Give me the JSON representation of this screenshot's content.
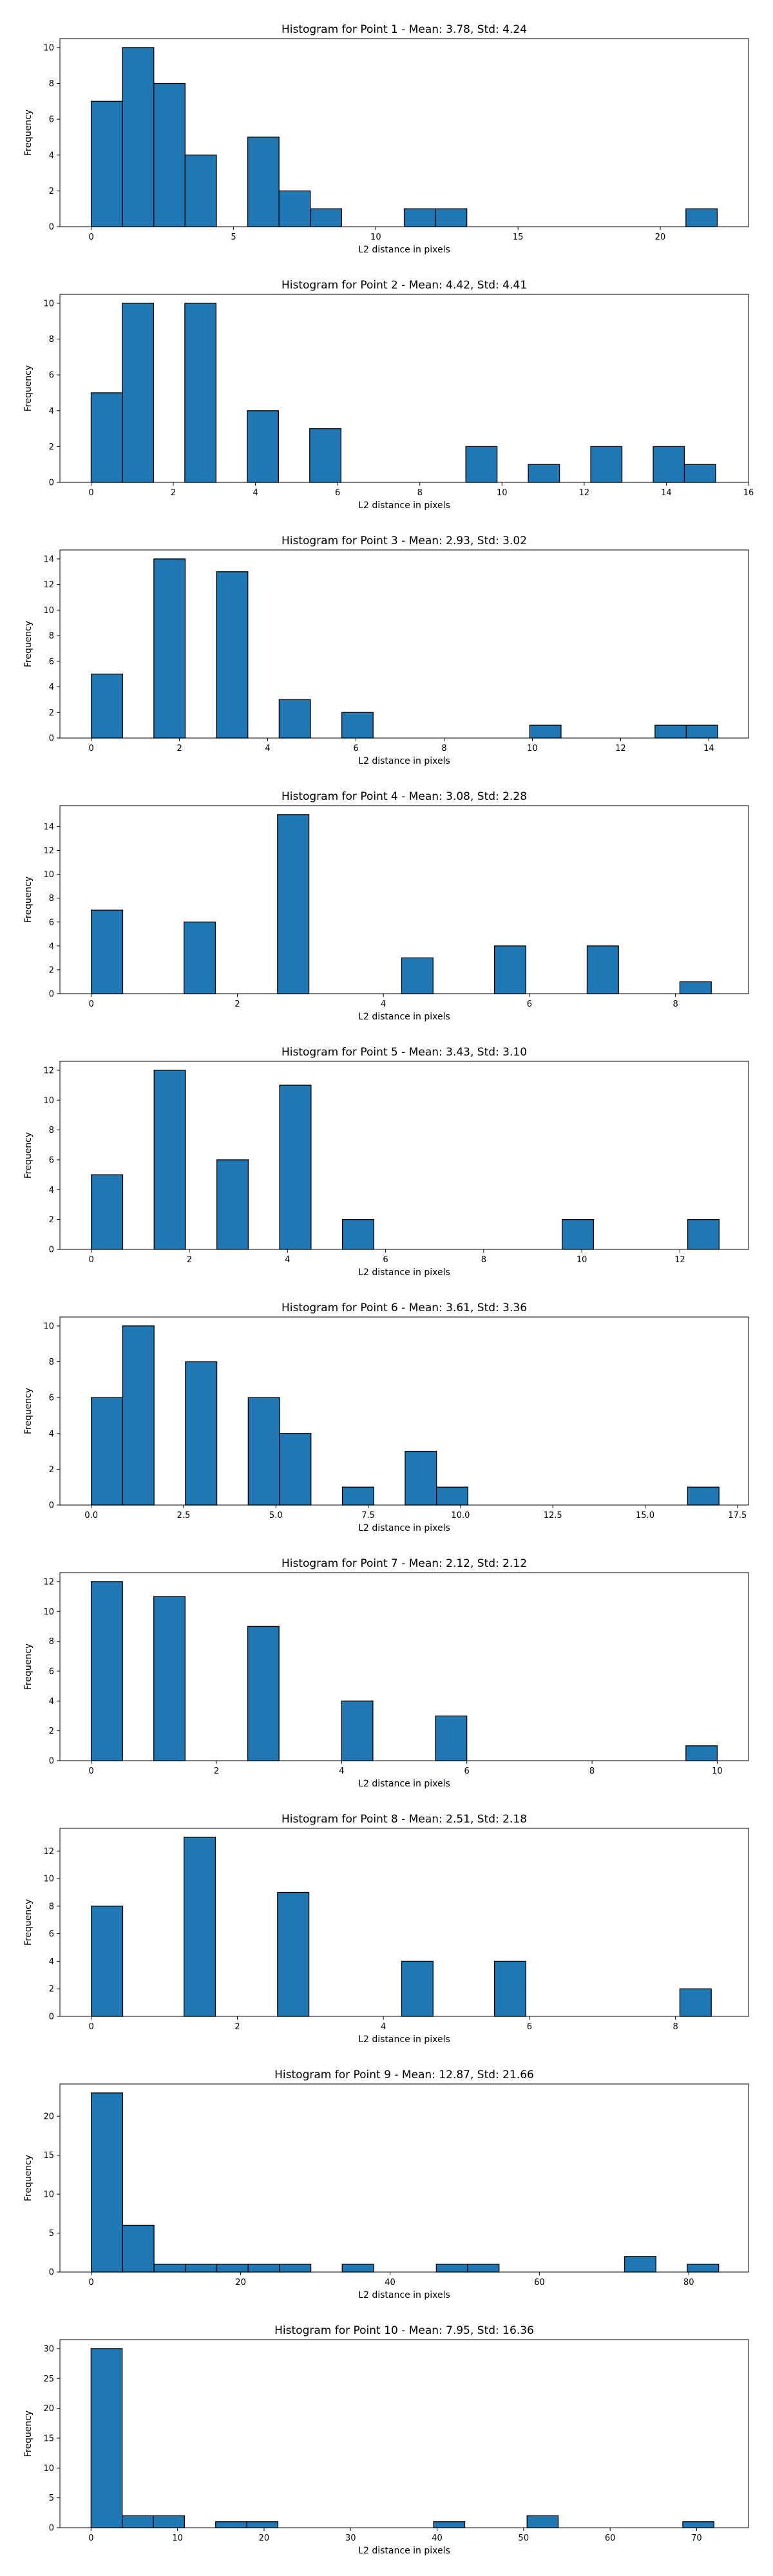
{
  "chart_data": [
    {
      "type": "bar",
      "title": "Histogram for Point 1 - Mean: 3.78, Std: 4.24",
      "xlabel": "L2 distance in pixels",
      "ylabel": "Frequency",
      "xlim": [
        -1.1,
        23.1
      ],
      "ylim": [
        0,
        10.5
      ],
      "xticks": [
        0,
        5,
        10,
        15,
        20
      ],
      "xtick_labels": [
        "0",
        "5",
        "10",
        "15",
        "20"
      ],
      "yticks": [
        0,
        2,
        4,
        6,
        8,
        10
      ],
      "ytick_labels": [
        "0",
        "2",
        "4",
        "6",
        "8",
        "10"
      ],
      "bin_width": 1.1,
      "bins": [
        {
          "x0": 0.0,
          "x1": 1.1,
          "count": 7
        },
        {
          "x0": 1.1,
          "x1": 2.2,
          "count": 10
        },
        {
          "x0": 2.2,
          "x1": 3.3,
          "count": 8
        },
        {
          "x0": 3.3,
          "x1": 4.4,
          "count": 4
        },
        {
          "x0": 5.5,
          "x1": 6.6,
          "count": 5
        },
        {
          "x0": 6.6,
          "x1": 7.7,
          "count": 2
        },
        {
          "x0": 7.7,
          "x1": 8.8,
          "count": 1
        },
        {
          "x0": 11.0,
          "x1": 12.1,
          "count": 1
        },
        {
          "x0": 12.1,
          "x1": 13.2,
          "count": 1
        },
        {
          "x0": 20.9,
          "x1": 22.0,
          "count": 1
        }
      ]
    },
    {
      "type": "bar",
      "title": "Histogram for Point 2 - Mean: 4.42, Std: 4.41",
      "xlabel": "L2 distance in pixels",
      "ylabel": "Frequency",
      "xlim": [
        -0.76,
        16.0
      ],
      "ylim": [
        0,
        10.5
      ],
      "xticks": [
        0,
        2,
        4,
        6,
        8,
        10,
        12,
        14,
        16
      ],
      "xtick_labels": [
        "0",
        "2",
        "4",
        "6",
        "8",
        "10",
        "12",
        "14",
        "16"
      ],
      "yticks": [
        0,
        2,
        4,
        6,
        8,
        10
      ],
      "ytick_labels": [
        "0",
        "2",
        "4",
        "6",
        "8",
        "10"
      ],
      "bin_width": 0.76,
      "bins": [
        {
          "x0": 0.0,
          "x1": 0.76,
          "count": 5
        },
        {
          "x0": 0.76,
          "x1": 1.52,
          "count": 10
        },
        {
          "x0": 2.28,
          "x1": 3.04,
          "count": 10
        },
        {
          "x0": 3.8,
          "x1": 4.56,
          "count": 4
        },
        {
          "x0": 5.32,
          "x1": 6.08,
          "count": 3
        },
        {
          "x0": 9.12,
          "x1": 9.88,
          "count": 2
        },
        {
          "x0": 10.64,
          "x1": 11.4,
          "count": 1
        },
        {
          "x0": 12.16,
          "x1": 12.92,
          "count": 2
        },
        {
          "x0": 13.68,
          "x1": 14.44,
          "count": 2
        },
        {
          "x0": 14.44,
          "x1": 15.2,
          "count": 1
        }
      ]
    },
    {
      "type": "bar",
      "title": "Histogram for Point 3 - Mean: 2.93, Std: 3.02",
      "xlabel": "L2 distance in pixels",
      "ylabel": "Frequency",
      "xlim": [
        -0.71,
        14.9
      ],
      "ylim": [
        0,
        14.7
      ],
      "xticks": [
        0,
        2,
        4,
        6,
        8,
        10,
        12,
        14
      ],
      "xtick_labels": [
        "0",
        "2",
        "4",
        "6",
        "8",
        "10",
        "12",
        "14"
      ],
      "yticks": [
        0,
        2,
        4,
        6,
        8,
        10,
        12,
        14
      ],
      "ytick_labels": [
        "0",
        "2",
        "4",
        "6",
        "8",
        "10",
        "12",
        "14"
      ],
      "bin_width": 0.71,
      "bins": [
        {
          "x0": 0.0,
          "x1": 0.71,
          "count": 5
        },
        {
          "x0": 1.42,
          "x1": 2.13,
          "count": 14
        },
        {
          "x0": 2.84,
          "x1": 3.55,
          "count": 13
        },
        {
          "x0": 4.26,
          "x1": 4.97,
          "count": 3
        },
        {
          "x0": 5.68,
          "x1": 6.39,
          "count": 2
        },
        {
          "x0": 9.94,
          "x1": 10.65,
          "count": 1
        },
        {
          "x0": 12.78,
          "x1": 13.49,
          "count": 1
        },
        {
          "x0": 13.49,
          "x1": 14.2,
          "count": 1
        }
      ]
    },
    {
      "type": "bar",
      "title": "Histogram for Point 4 - Mean: 3.08, Std: 2.28",
      "xlabel": "L2 distance in pixels",
      "ylabel": "Frequency",
      "xlim": [
        -0.43,
        9.0
      ],
      "ylim": [
        0,
        15.75
      ],
      "xticks": [
        0,
        2,
        4,
        6,
        8
      ],
      "xtick_labels": [
        "0",
        "2",
        "4",
        "6",
        "8"
      ],
      "yticks": [
        0,
        2,
        4,
        6,
        8,
        10,
        12,
        14
      ],
      "ytick_labels": [
        "0",
        "2",
        "4",
        "6",
        "8",
        "10",
        "12",
        "14"
      ],
      "bin_width": 0.43,
      "bins": [
        {
          "x0": 0.0,
          "x1": 0.43,
          "count": 7
        },
        {
          "x0": 1.27,
          "x1": 1.7,
          "count": 6
        },
        {
          "x0": 2.55,
          "x1": 2.98,
          "count": 15
        },
        {
          "x0": 4.25,
          "x1": 4.68,
          "count": 3
        },
        {
          "x0": 5.52,
          "x1": 5.95,
          "count": 4
        },
        {
          "x0": 6.79,
          "x1": 7.22,
          "count": 4
        },
        {
          "x0": 8.06,
          "x1": 8.49,
          "count": 1
        }
      ]
    },
    {
      "type": "bar",
      "title": "Histogram for Point 5 - Mean: 3.43, Std: 3.10",
      "xlabel": "L2 distance in pixels",
      "ylabel": "Frequency",
      "xlim": [
        -0.64,
        13.4
      ],
      "ylim": [
        0,
        12.6
      ],
      "xticks": [
        0,
        2,
        4,
        6,
        8,
        10,
        12
      ],
      "xtick_labels": [
        "0",
        "2",
        "4",
        "6",
        "8",
        "10",
        "12"
      ],
      "yticks": [
        0,
        2,
        4,
        6,
        8,
        10,
        12
      ],
      "ytick_labels": [
        "0",
        "2",
        "4",
        "6",
        "8",
        "10",
        "12"
      ],
      "bin_width": 0.64,
      "bins": [
        {
          "x0": 0.0,
          "x1": 0.64,
          "count": 5
        },
        {
          "x0": 1.28,
          "x1": 1.92,
          "count": 12
        },
        {
          "x0": 2.56,
          "x1": 3.2,
          "count": 6
        },
        {
          "x0": 3.84,
          "x1": 4.48,
          "count": 11
        },
        {
          "x0": 5.12,
          "x1": 5.76,
          "count": 2
        },
        {
          "x0": 9.6,
          "x1": 10.24,
          "count": 2
        },
        {
          "x0": 12.16,
          "x1": 12.8,
          "count": 2
        }
      ]
    },
    {
      "type": "bar",
      "title": "Histogram for Point 6 - Mean: 3.61, Std: 3.36",
      "xlabel": "L2 distance in pixels",
      "ylabel": "Frequency",
      "xlim": [
        -0.85,
        17.8
      ],
      "ylim": [
        0,
        10.5
      ],
      "xticks": [
        0.0,
        2.5,
        5.0,
        7.5,
        10.0,
        12.5,
        15.0,
        17.5
      ],
      "xtick_labels": [
        "0.0",
        "2.5",
        "5.0",
        "7.5",
        "10.0",
        "12.5",
        "15.0",
        "17.5"
      ],
      "yticks": [
        0,
        2,
        4,
        6,
        8,
        10
      ],
      "ytick_labels": [
        "0",
        "2",
        "4",
        "6",
        "8",
        "10"
      ],
      "bin_width": 0.85,
      "bins": [
        {
          "x0": 0.0,
          "x1": 0.85,
          "count": 6
        },
        {
          "x0": 0.85,
          "x1": 1.7,
          "count": 10
        },
        {
          "x0": 2.55,
          "x1": 3.4,
          "count": 8
        },
        {
          "x0": 4.25,
          "x1": 5.1,
          "count": 6
        },
        {
          "x0": 5.1,
          "x1": 5.95,
          "count": 4
        },
        {
          "x0": 6.8,
          "x1": 7.65,
          "count": 1
        },
        {
          "x0": 8.5,
          "x1": 9.35,
          "count": 3
        },
        {
          "x0": 9.35,
          "x1": 10.2,
          "count": 1
        },
        {
          "x0": 16.15,
          "x1": 17.0,
          "count": 1
        }
      ]
    },
    {
      "type": "bar",
      "title": "Histogram for Point 7 - Mean: 2.12, Std: 2.12",
      "xlabel": "L2 distance in pixels",
      "ylabel": "Frequency",
      "xlim": [
        -0.5,
        10.5
      ],
      "ylim": [
        0,
        12.6
      ],
      "xticks": [
        0,
        2,
        4,
        6,
        8,
        10
      ],
      "xtick_labels": [
        "0",
        "2",
        "4",
        "6",
        "8",
        "10"
      ],
      "yticks": [
        0,
        2,
        4,
        6,
        8,
        10,
        12
      ],
      "ytick_labels": [
        "0",
        "2",
        "4",
        "6",
        "8",
        "10",
        "12"
      ],
      "bin_width": 0.5,
      "bins": [
        {
          "x0": 0.0,
          "x1": 0.5,
          "count": 12
        },
        {
          "x0": 1.0,
          "x1": 1.5,
          "count": 11
        },
        {
          "x0": 2.5,
          "x1": 3.0,
          "count": 9
        },
        {
          "x0": 4.0,
          "x1": 4.5,
          "count": 4
        },
        {
          "x0": 5.5,
          "x1": 6.0,
          "count": 3
        },
        {
          "x0": 9.5,
          "x1": 10.0,
          "count": 1
        }
      ]
    },
    {
      "type": "bar",
      "title": "Histogram for Point 8 - Mean: 2.51, Std: 2.18",
      "xlabel": "L2 distance in pixels",
      "ylabel": "Frequency",
      "xlim": [
        -0.43,
        9.0
      ],
      "ylim": [
        0,
        13.65
      ],
      "xticks": [
        0,
        2,
        4,
        6,
        8
      ],
      "xtick_labels": [
        "0",
        "2",
        "4",
        "6",
        "8"
      ],
      "yticks": [
        0,
        2,
        4,
        6,
        8,
        10,
        12
      ],
      "ytick_labels": [
        "0",
        "2",
        "4",
        "6",
        "8",
        "10",
        "12"
      ],
      "bin_width": 0.43,
      "bins": [
        {
          "x0": 0.0,
          "x1": 0.43,
          "count": 8
        },
        {
          "x0": 1.27,
          "x1": 1.7,
          "count": 13
        },
        {
          "x0": 2.55,
          "x1": 2.98,
          "count": 9
        },
        {
          "x0": 4.25,
          "x1": 4.68,
          "count": 4
        },
        {
          "x0": 5.52,
          "x1": 5.95,
          "count": 4
        },
        {
          "x0": 8.06,
          "x1": 8.49,
          "count": 2
        }
      ]
    },
    {
      "type": "bar",
      "title": "Histogram for Point 9 - Mean: 12.87, Std: 21.66",
      "xlabel": "L2 distance in pixels",
      "ylabel": "Frequency",
      "xlim": [
        -4.2,
        88.0
      ],
      "ylim": [
        0,
        24.15
      ],
      "xticks": [
        0,
        20,
        40,
        60,
        80
      ],
      "xtick_labels": [
        "0",
        "20",
        "40",
        "60",
        "80"
      ],
      "yticks": [
        0,
        5,
        10,
        15,
        20
      ],
      "ytick_labels": [
        "0",
        "5",
        "10",
        "15",
        "20"
      ],
      "bin_width": 4.2,
      "bins": [
        {
          "x0": 0.0,
          "x1": 4.2,
          "count": 23
        },
        {
          "x0": 4.2,
          "x1": 8.4,
          "count": 6
        },
        {
          "x0": 8.4,
          "x1": 12.6,
          "count": 1
        },
        {
          "x0": 12.6,
          "x1": 16.8,
          "count": 1
        },
        {
          "x0": 16.8,
          "x1": 21.0,
          "count": 1
        },
        {
          "x0": 21.0,
          "x1": 25.2,
          "count": 1
        },
        {
          "x0": 25.2,
          "x1": 29.4,
          "count": 1
        },
        {
          "x0": 33.6,
          "x1": 37.8,
          "count": 1
        },
        {
          "x0": 46.2,
          "x1": 50.4,
          "count": 1
        },
        {
          "x0": 50.4,
          "x1": 54.6,
          "count": 1
        },
        {
          "x0": 71.4,
          "x1": 75.6,
          "count": 2
        },
        {
          "x0": 79.8,
          "x1": 84.0,
          "count": 1
        }
      ]
    },
    {
      "type": "bar",
      "title": "Histogram for Point 10 - Mean: 7.95, Std: 16.36",
      "xlabel": "L2 distance in pixels",
      "ylabel": "Frequency",
      "xlim": [
        -3.6,
        76.0
      ],
      "ylim": [
        0,
        31.5
      ],
      "xticks": [
        0,
        10,
        20,
        30,
        40,
        50,
        60,
        70
      ],
      "xtick_labels": [
        "0",
        "10",
        "20",
        "30",
        "40",
        "50",
        "60",
        "70"
      ],
      "yticks": [
        0,
        5,
        10,
        15,
        20,
        25,
        30
      ],
      "ytick_labels": [
        "0",
        "5",
        "10",
        "15",
        "20",
        "25",
        "30"
      ],
      "bin_width": 3.6,
      "bins": [
        {
          "x0": 0.0,
          "x1": 3.6,
          "count": 30
        },
        {
          "x0": 3.6,
          "x1": 7.2,
          "count": 2
        },
        {
          "x0": 7.2,
          "x1": 10.8,
          "count": 2
        },
        {
          "x0": 14.4,
          "x1": 18.0,
          "count": 1
        },
        {
          "x0": 18.0,
          "x1": 21.6,
          "count": 1
        },
        {
          "x0": 39.6,
          "x1": 43.2,
          "count": 1
        },
        {
          "x0": 50.4,
          "x1": 54.0,
          "count": 2
        },
        {
          "x0": 68.4,
          "x1": 72.0,
          "count": 1
        }
      ]
    }
  ],
  "colors": {
    "bar_fill": "#1f77b4",
    "bar_edge": "#000000",
    "axis": "#000000",
    "background": "#ffffff"
  }
}
